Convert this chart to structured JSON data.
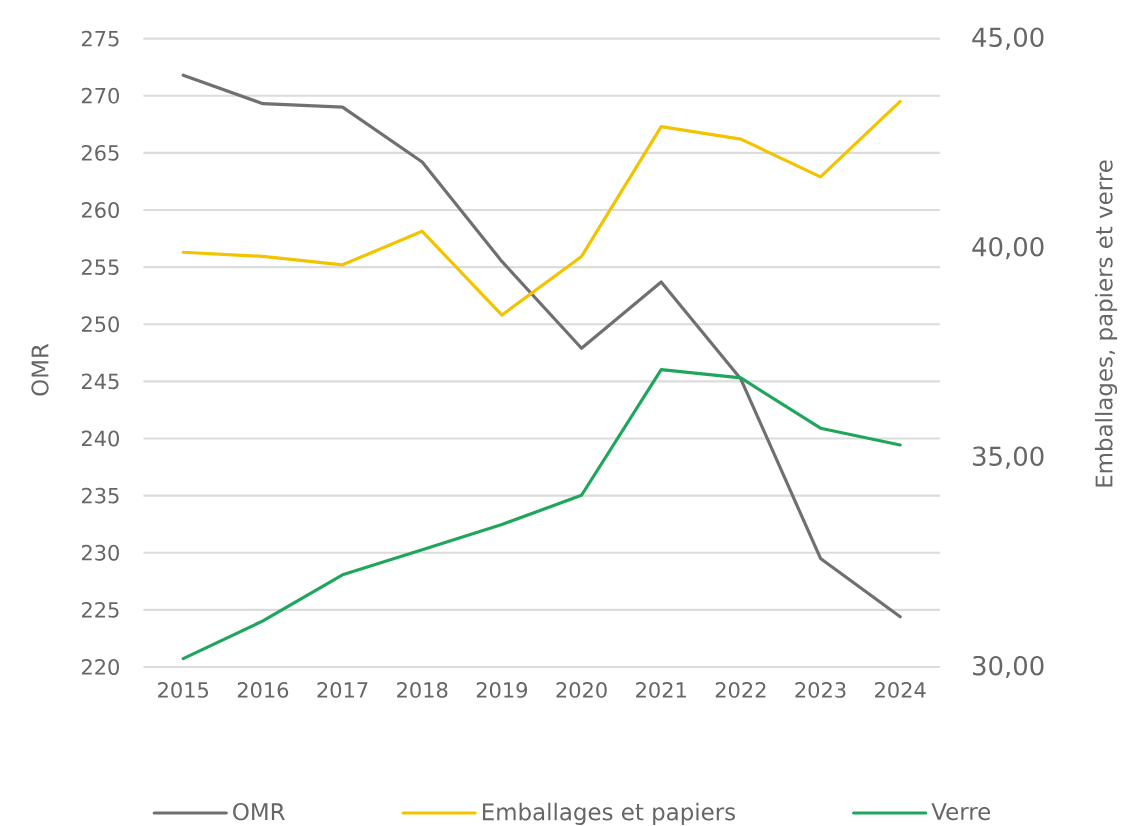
{
  "chart_data": {
    "type": "line",
    "categories": [
      "2015",
      "2016",
      "2017",
      "2018",
      "2019",
      "2020",
      "2021",
      "2022",
      "2023",
      "2024"
    ],
    "series": [
      {
        "name": "OMR",
        "color": "#707070",
        "values": [
          271.8,
          269.3,
          269.0,
          264.2,
          255.5,
          247.9,
          253.7,
          245.2,
          229.5,
          224.4
        ]
      },
      {
        "name": "Emballages et papiers",
        "color": "#f4c300",
        "axis": "y2",
        "values": [
          39.9,
          39.8,
          39.6,
          40.4,
          38.4,
          39.8,
          42.9,
          42.6,
          41.7,
          43.5
        ]
      },
      {
        "name": "Verre",
        "color": "#1fa65c",
        "axis": "y2",
        "values": [
          30.2,
          31.1,
          32.2,
          32.8,
          33.4,
          34.1,
          37.1,
          36.9,
          35.7,
          35.3
        ]
      }
    ],
    "ylabel": "OMR",
    "y2label": "Emballages, papiers et verre",
    "ylim": [
      220,
      275
    ],
    "yticks": [
      220,
      225,
      230,
      235,
      240,
      245,
      250,
      255,
      260,
      265,
      270,
      275
    ],
    "y2lim": [
      30,
      45
    ],
    "y2ticks": [
      {
        "value": 30,
        "label": "30,00"
      },
      {
        "value": 35,
        "label": "35,00"
      },
      {
        "value": 40,
        "label": "40,00"
      },
      {
        "value": 45,
        "label": "45,00"
      }
    ],
    "grid": "y",
    "legend": "bottom"
  }
}
